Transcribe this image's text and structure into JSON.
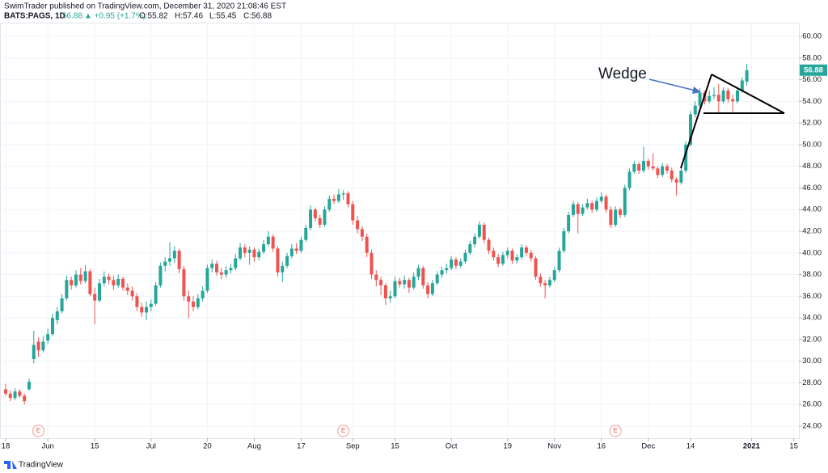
{
  "header": {
    "published": "SwimTrader published on TradingView.com, December 31, 2020 21:08:46 EST",
    "symbol": "BATS:PAGS, 1D",
    "price": "56.88",
    "change": "▲ +0.95 (+1.7%)",
    "open": "O:55.82",
    "high": "H:57.46",
    "low": "L:55.45",
    "close": "C:56.88"
  },
  "footer": {
    "brand": "TradingView"
  },
  "chart_data": {
    "type": "candlestick",
    "annotation": "Wedge",
    "last_price_label": "56.88",
    "up_color": "#26a69a",
    "down_color": "#ef5350",
    "grid": true,
    "xlim": [
      -1.2,
      169.1
    ],
    "ylim": [
      22.88,
      61.27
    ],
    "xticks": [
      {
        "value": 0,
        "label": "18"
      },
      {
        "value": 9,
        "label": "Jun"
      },
      {
        "value": 19,
        "label": "15"
      },
      {
        "value": 31,
        "label": "Jul"
      },
      {
        "value": 43,
        "label": "20"
      },
      {
        "value": 53,
        "label": "Aug"
      },
      {
        "value": 63,
        "label": "17"
      },
      {
        "value": 74,
        "label": "Sep"
      },
      {
        "value": 83,
        "label": "15"
      },
      {
        "value": 95,
        "label": "Oct"
      },
      {
        "value": 107,
        "label": "19"
      },
      {
        "value": 117,
        "label": "Nov"
      },
      {
        "value": 127,
        "label": "16"
      },
      {
        "value": 137,
        "label": "Dec"
      },
      {
        "value": 146,
        "label": "14"
      },
      {
        "value": 159,
        "label": "2021"
      },
      {
        "value": 168,
        "label": "15"
      }
    ],
    "yticks": [
      {
        "value": 24,
        "label": "24.00"
      },
      {
        "value": 26,
        "label": "26.00"
      },
      {
        "value": 28,
        "label": "28.00"
      },
      {
        "value": 30,
        "label": "30.00"
      },
      {
        "value": 32,
        "label": "32.00"
      },
      {
        "value": 34,
        "label": "34.00"
      },
      {
        "value": 36,
        "label": "36.00"
      },
      {
        "value": 38,
        "label": "38.00"
      },
      {
        "value": 40,
        "label": "40.00"
      },
      {
        "value": 42,
        "label": "42.00"
      },
      {
        "value": 44,
        "label": "44.00"
      },
      {
        "value": 46,
        "label": "46.00"
      },
      {
        "value": 48,
        "label": "48.00"
      },
      {
        "value": 50,
        "label": "50.00"
      },
      {
        "value": 52,
        "label": "52.00"
      },
      {
        "value": 54,
        "label": "54.00"
      },
      {
        "value": 56,
        "label": "56.00"
      },
      {
        "value": 58,
        "label": "58.00"
      },
      {
        "value": 60,
        "label": "60.00"
      }
    ],
    "events": [
      {
        "x": 7,
        "label": "E"
      },
      {
        "x": 72,
        "label": "E"
      },
      {
        "x": 130,
        "label": "E"
      }
    ],
    "ohlc": [
      [
        27.4,
        27.9,
        26.8,
        27.0
      ],
      [
        27.0,
        27.3,
        26.3,
        26.6
      ],
      [
        26.6,
        27.5,
        26.4,
        27.2
      ],
      [
        27.2,
        27.4,
        26.6,
        26.8
      ],
      [
        26.8,
        27.0,
        26.0,
        26.3
      ],
      [
        27.4,
        28.4,
        27.3,
        28.1
      ],
      [
        30.2,
        32.8,
        29.8,
        31.5
      ],
      [
        31.8,
        32.2,
        30.4,
        31.0
      ],
      [
        31.0,
        32.3,
        30.8,
        31.8
      ],
      [
        31.9,
        33.0,
        31.6,
        32.5
      ],
      [
        32.5,
        34.4,
        32.3,
        34.0
      ],
      [
        33.8,
        35.0,
        33.4,
        34.6
      ],
      [
        34.6,
        36.2,
        34.4,
        35.8
      ],
      [
        35.8,
        37.9,
        35.6,
        37.5
      ],
      [
        37.5,
        37.8,
        36.6,
        37.0
      ],
      [
        37.0,
        38.4,
        36.8,
        38.0
      ],
      [
        38.0,
        38.6,
        37.1,
        37.4
      ],
      [
        37.4,
        38.9,
        37.2,
        38.3
      ],
      [
        38.3,
        38.5,
        36.0,
        36.2
      ],
      [
        36.2,
        36.8,
        33.4,
        35.6
      ],
      [
        35.6,
        37.6,
        35.4,
        37.2
      ],
      [
        37.2,
        38.3,
        36.9,
        37.8
      ],
      [
        37.8,
        38.1,
        37.1,
        37.5
      ],
      [
        37.5,
        37.9,
        36.6,
        37.0
      ],
      [
        37.0,
        38.0,
        36.8,
        37.6
      ],
      [
        37.6,
        37.8,
        36.5,
        36.8
      ],
      [
        36.8,
        37.2,
        36.1,
        36.5
      ],
      [
        36.5,
        36.9,
        35.6,
        36.0
      ],
      [
        36.0,
        36.3,
        34.6,
        35.0
      ],
      [
        35.0,
        35.4,
        34.1,
        34.5
      ],
      [
        34.5,
        35.5,
        33.8,
        35.0
      ],
      [
        35.0,
        35.7,
        34.6,
        35.3
      ],
      [
        35.3,
        37.3,
        35.1,
        37.0
      ],
      [
        37.0,
        39.1,
        36.8,
        38.8
      ],
      [
        38.8,
        39.6,
        38.3,
        39.2
      ],
      [
        39.2,
        41.0,
        38.8,
        39.5
      ],
      [
        39.5,
        40.6,
        39.1,
        40.2
      ],
      [
        40.2,
        40.4,
        38.1,
        38.5
      ],
      [
        38.5,
        38.8,
        35.6,
        36.0
      ],
      [
        36.0,
        36.5,
        34.0,
        35.5
      ],
      [
        35.5,
        36.0,
        34.6,
        35.0
      ],
      [
        35.0,
        36.2,
        34.8,
        35.8
      ],
      [
        35.8,
        36.9,
        35.5,
        36.5
      ],
      [
        36.5,
        38.9,
        36.3,
        38.6
      ],
      [
        38.6,
        39.4,
        38.2,
        39.0
      ],
      [
        39.0,
        39.3,
        37.9,
        38.2
      ],
      [
        38.2,
        38.6,
        37.6,
        38.0
      ],
      [
        38.0,
        38.8,
        37.7,
        38.4
      ],
      [
        38.4,
        39.0,
        38.1,
        38.6
      ],
      [
        38.6,
        39.9,
        38.4,
        39.5
      ],
      [
        39.5,
        40.9,
        39.3,
        40.5
      ],
      [
        40.5,
        40.8,
        39.6,
        40.0
      ],
      [
        40.0,
        40.6,
        38.9,
        40.3
      ],
      [
        40.3,
        40.5,
        39.2,
        39.6
      ],
      [
        39.6,
        40.4,
        39.3,
        40.1
      ],
      [
        40.1,
        41.2,
        39.9,
        40.8
      ],
      [
        40.8,
        42.0,
        40.6,
        41.5
      ],
      [
        41.5,
        41.7,
        40.1,
        40.4
      ],
      [
        40.4,
        40.6,
        37.8,
        38.2
      ],
      [
        38.2,
        39.2,
        37.3,
        38.8
      ],
      [
        38.8,
        40.0,
        38.6,
        39.7
      ],
      [
        39.7,
        40.8,
        39.5,
        40.4
      ],
      [
        40.4,
        40.9,
        39.9,
        40.2
      ],
      [
        40.2,
        41.5,
        40.0,
        41.2
      ],
      [
        41.2,
        42.6,
        41.0,
        42.3
      ],
      [
        42.3,
        44.4,
        42.1,
        44.0
      ],
      [
        44.0,
        44.2,
        42.9,
        43.2
      ],
      [
        43.2,
        43.5,
        42.3,
        42.6
      ],
      [
        42.6,
        44.3,
        42.4,
        44.0
      ],
      [
        44.0,
        45.3,
        43.8,
        45.0
      ],
      [
        45.0,
        45.4,
        44.5,
        44.8
      ],
      [
        44.8,
        45.9,
        44.6,
        45.4
      ],
      [
        45.4,
        45.8,
        44.9,
        45.5
      ],
      [
        45.5,
        45.7,
        44.2,
        44.5
      ],
      [
        44.5,
        44.8,
        42.6,
        43.0
      ],
      [
        43.0,
        43.4,
        41.8,
        42.2
      ],
      [
        42.2,
        42.5,
        41.1,
        41.5
      ],
      [
        41.5,
        41.8,
        39.6,
        40.0
      ],
      [
        40.0,
        40.3,
        37.6,
        38.0
      ],
      [
        38.0,
        38.4,
        36.9,
        37.5
      ],
      [
        37.5,
        37.8,
        36.1,
        37.0
      ],
      [
        37.0,
        37.2,
        35.2,
        35.8
      ],
      [
        35.8,
        36.5,
        35.4,
        36.0
      ],
      [
        36.0,
        37.8,
        35.8,
        37.4
      ],
      [
        37.4,
        37.7,
        36.8,
        37.1
      ],
      [
        37.1,
        37.9,
        36.7,
        37.5
      ],
      [
        37.5,
        37.7,
        36.3,
        36.8
      ],
      [
        36.8,
        38.2,
        36.6,
        37.8
      ],
      [
        37.8,
        38.9,
        37.5,
        38.6
      ],
      [
        38.6,
        38.8,
        36.7,
        37.0
      ],
      [
        37.0,
        37.3,
        35.8,
        36.2
      ],
      [
        36.2,
        37.5,
        36.0,
        37.2
      ],
      [
        37.2,
        38.3,
        37.0,
        38.0
      ],
      [
        38.0,
        38.7,
        37.7,
        38.4
      ],
      [
        38.4,
        39.0,
        38.1,
        38.6
      ],
      [
        38.6,
        39.7,
        38.4,
        39.4
      ],
      [
        39.4,
        39.6,
        38.5,
        38.8
      ],
      [
        38.8,
        39.5,
        38.6,
        39.2
      ],
      [
        39.2,
        40.3,
        39.0,
        40.0
      ],
      [
        40.0,
        41.1,
        39.8,
        40.8
      ],
      [
        40.8,
        41.8,
        40.5,
        41.5
      ],
      [
        41.5,
        42.9,
        41.3,
        42.6
      ],
      [
        42.6,
        42.8,
        40.9,
        41.2
      ],
      [
        41.2,
        41.4,
        39.9,
        40.2
      ],
      [
        40.2,
        40.5,
        39.3,
        39.6
      ],
      [
        39.6,
        39.9,
        38.7,
        39.0
      ],
      [
        39.0,
        40.1,
        38.8,
        39.8
      ],
      [
        39.8,
        40.5,
        39.5,
        40.2
      ],
      [
        40.2,
        40.4,
        39.0,
        39.3
      ],
      [
        39.3,
        39.9,
        39.0,
        39.6
      ],
      [
        39.6,
        40.8,
        39.4,
        40.5
      ],
      [
        40.5,
        40.7,
        39.7,
        40.0
      ],
      [
        40.0,
        40.3,
        39.2,
        39.5
      ],
      [
        39.5,
        39.7,
        37.5,
        37.8
      ],
      [
        37.8,
        38.1,
        36.9,
        37.2
      ],
      [
        37.2,
        37.5,
        35.8,
        37.0
      ],
      [
        37.0,
        37.8,
        36.8,
        37.5
      ],
      [
        37.5,
        38.7,
        37.3,
        38.4
      ],
      [
        38.4,
        40.5,
        38.2,
        40.2
      ],
      [
        40.2,
        42.3,
        40.0,
        42.0
      ],
      [
        42.0,
        43.8,
        41.8,
        43.5
      ],
      [
        43.5,
        44.8,
        43.3,
        44.5
      ],
      [
        44.5,
        44.7,
        41.8,
        43.6
      ],
      [
        43.6,
        44.5,
        43.4,
        44.2
      ],
      [
        44.2,
        45.0,
        44.0,
        44.6
      ],
      [
        44.6,
        44.8,
        43.7,
        44.0
      ],
      [
        44.0,
        45.1,
        43.8,
        44.8
      ],
      [
        44.8,
        45.6,
        44.6,
        45.2
      ],
      [
        45.2,
        45.4,
        43.7,
        44.0
      ],
      [
        44.0,
        44.3,
        42.3,
        42.6
      ],
      [
        42.6,
        44.3,
        42.4,
        44.0
      ],
      [
        44.0,
        44.2,
        43.2,
        43.5
      ],
      [
        43.5,
        46.3,
        43.3,
        46.0
      ],
      [
        46.0,
        47.8,
        45.8,
        47.5
      ],
      [
        47.5,
        48.5,
        47.3,
        48.2
      ],
      [
        48.2,
        48.4,
        47.3,
        47.6
      ],
      [
        47.6,
        49.8,
        47.4,
        48.5
      ],
      [
        48.5,
        48.7,
        47.7,
        48.0
      ],
      [
        48.0,
        49.2,
        47.6,
        47.8
      ],
      [
        47.8,
        48.0,
        46.9,
        47.2
      ],
      [
        47.2,
        48.3,
        47.0,
        48.0
      ],
      [
        48.0,
        48.2,
        47.3,
        47.6
      ],
      [
        47.6,
        47.9,
        46.5,
        46.8
      ],
      [
        46.8,
        47.0,
        45.3,
        46.5
      ],
      [
        46.5,
        47.9,
        46.3,
        47.6
      ],
      [
        47.6,
        50.3,
        47.4,
        50.0
      ],
      [
        50.0,
        53.1,
        49.8,
        52.8
      ],
      [
        52.8,
        54.0,
        52.5,
        53.6
      ],
      [
        53.6,
        55.2,
        53.4,
        54.8
      ],
      [
        54.8,
        55.0,
        53.7,
        54.0
      ],
      [
        54.0,
        55.0,
        53.8,
        54.5
      ],
      [
        54.5,
        55.3,
        54.2,
        54.6
      ],
      [
        54.6,
        55.6,
        53.0,
        54.0
      ],
      [
        54.0,
        55.3,
        53.8,
        55.0
      ],
      [
        55.0,
        55.2,
        53.9,
        54.2
      ],
      [
        54.2,
        54.6,
        53.0,
        54.0
      ],
      [
        54.0,
        55.3,
        53.8,
        55.0
      ],
      [
        55.0,
        56.2,
        54.8,
        55.93
      ],
      [
        55.82,
        57.46,
        55.45,
        56.88
      ]
    ]
  }
}
